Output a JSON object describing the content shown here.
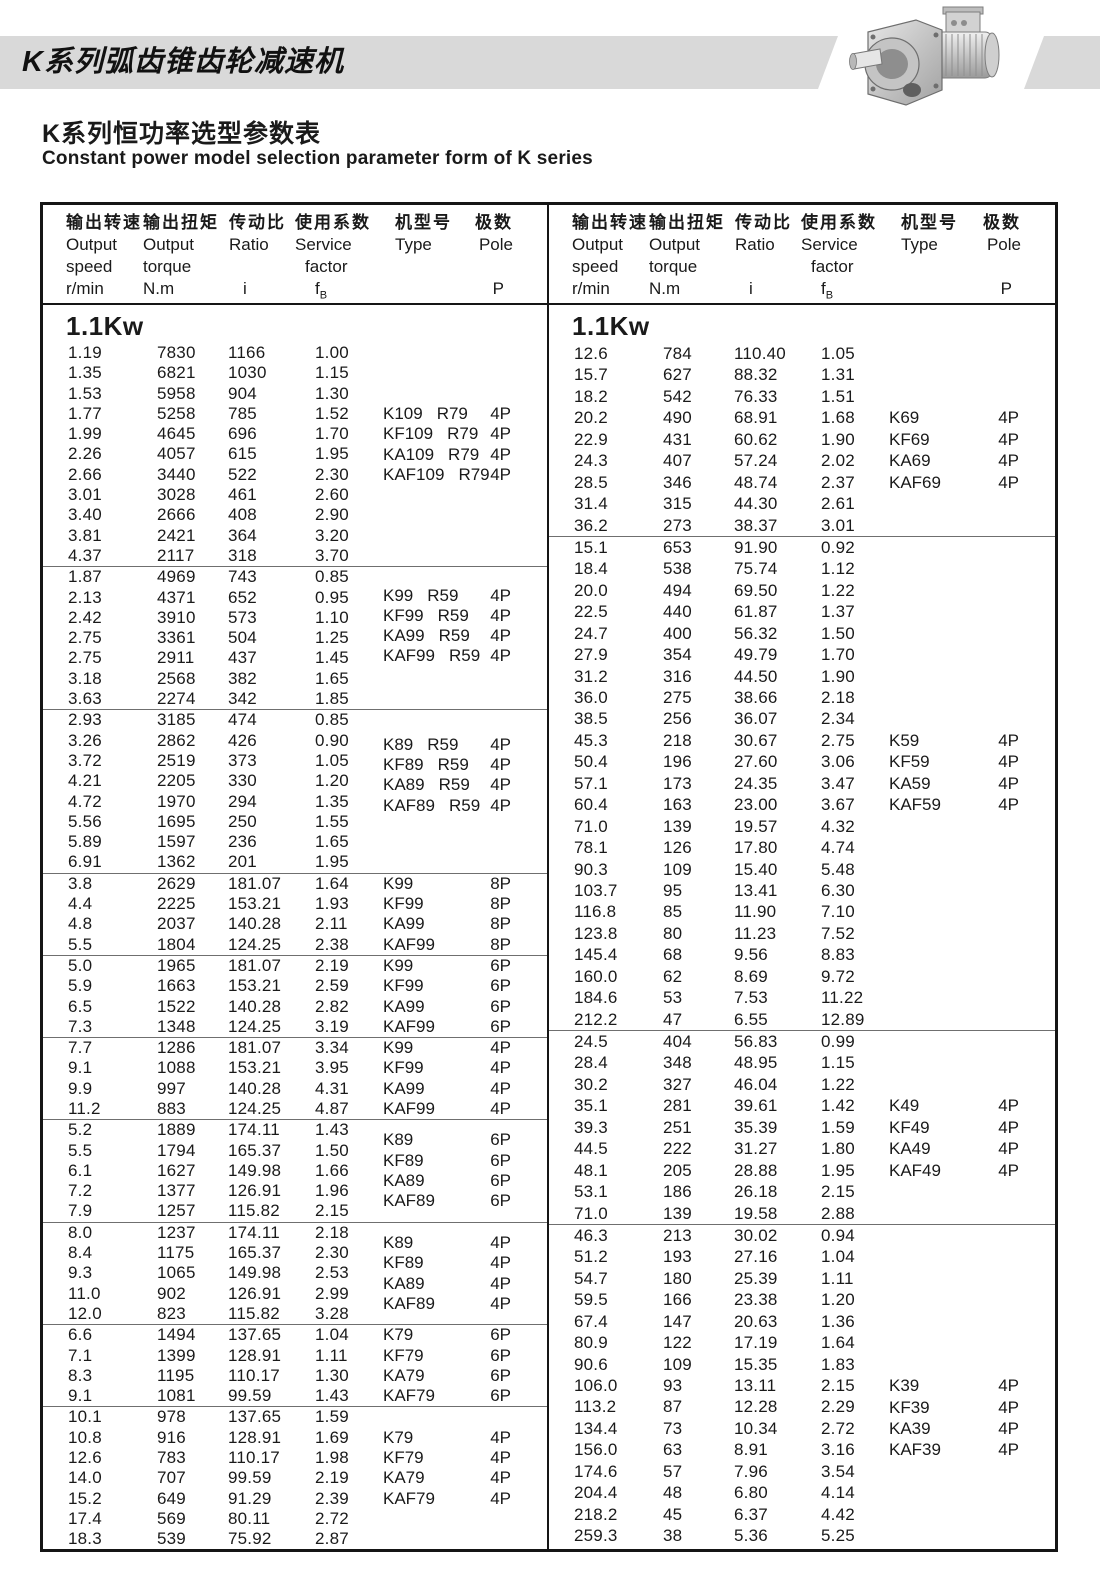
{
  "banner": {
    "title": "K系列弧齿锥齿轮减速机"
  },
  "page": {
    "title_zh": "K系列恒功率选型参数表",
    "title_en": "Constant power model selection parameter form of K series"
  },
  "power_label": "1.1Kw",
  "header_cols": [
    {
      "zh": "输出转速",
      "lines": [
        "Output",
        "speed",
        "r/min"
      ]
    },
    {
      "zh": "输出扭矩",
      "lines": [
        "Output",
        "torque",
        "N.m"
      ]
    },
    {
      "zh": "传动比",
      "lines": [
        "Ratio",
        "",
        "i"
      ]
    },
    {
      "zh": "使用系数",
      "lines": [
        "Service",
        "factor",
        "f_B"
      ]
    },
    {
      "zh": "机型号",
      "lines": [
        "Type"
      ]
    },
    {
      "zh": "极数",
      "lines": [
        "Pole",
        "",
        "P"
      ]
    }
  ],
  "left_blocks": [
    {
      "rows": [
        [
          "1.19",
          "7830",
          "1166",
          "1.00"
        ],
        [
          "1.35",
          "6821",
          "1030",
          "1.15"
        ],
        [
          "1.53",
          "5958",
          "904",
          "1.30"
        ],
        [
          "1.77",
          "5258",
          "785",
          "1.52"
        ],
        [
          "1.99",
          "4645",
          "696",
          "1.70"
        ],
        [
          "2.26",
          "4057",
          "615",
          "1.95"
        ],
        [
          "2.66",
          "3440",
          "522",
          "2.30"
        ],
        [
          "3.01",
          "3028",
          "461",
          "2.60"
        ],
        [
          "3.40",
          "2666",
          "408",
          "2.90"
        ],
        [
          "3.81",
          "2421",
          "364",
          "3.20"
        ],
        [
          "4.37",
          "2117",
          "318",
          "3.70"
        ]
      ],
      "types": {
        "names": [
          "K109",
          "KF109",
          "KA109",
          "KAF109"
        ],
        "suffix": "R79",
        "pole": "4P",
        "start": 3
      }
    },
    {
      "rows": [
        [
          "1.87",
          "4969",
          "743",
          "0.85"
        ],
        [
          "2.13",
          "4371",
          "652",
          "0.95"
        ],
        [
          "2.42",
          "3910",
          "573",
          "1.10"
        ],
        [
          "2.75",
          "3361",
          "504",
          "1.25"
        ],
        [
          "2.75",
          "2911",
          "437",
          "1.45"
        ],
        [
          "3.18",
          "2568",
          "382",
          "1.65"
        ],
        [
          "3.63",
          "2274",
          "342",
          "1.85"
        ]
      ],
      "types": {
        "names": [
          "K99",
          "KF99",
          "KA99",
          "KAF99"
        ],
        "suffix": "R59",
        "pole": "4P",
        "start": 0.9
      }
    },
    {
      "rows": [
        [
          "2.93",
          "3185",
          "474",
          "0.85"
        ],
        [
          "3.26",
          "2862",
          "426",
          "0.90"
        ],
        [
          "3.72",
          "2519",
          "373",
          "1.05"
        ],
        [
          "4.21",
          "2205",
          "330",
          "1.20"
        ],
        [
          "4.72",
          "1970",
          "294",
          "1.35"
        ],
        [
          "5.56",
          "1695",
          "250",
          "1.55"
        ],
        [
          "5.89",
          "1597",
          "236",
          "1.65"
        ],
        [
          "6.91",
          "1362",
          "201",
          "1.95"
        ]
      ],
      "types": {
        "names": [
          "K89",
          "KF89",
          "KA89",
          "KAF89"
        ],
        "suffix": "R59",
        "pole": "4P",
        "start": 1.2
      }
    },
    {
      "rows": [
        [
          "3.8",
          "2629",
          "181.07",
          "1.64"
        ],
        [
          "4.4",
          "2225",
          "153.21",
          "1.93"
        ],
        [
          "4.8",
          "2037",
          "140.28",
          "2.11"
        ],
        [
          "5.5",
          "1804",
          "124.25",
          "2.38"
        ]
      ],
      "types": {
        "names": [
          "K99",
          "KF99",
          "KA99",
          "KAF99"
        ],
        "suffix": "",
        "pole": "8P",
        "start": 0
      }
    },
    {
      "rows": [
        [
          "5.0",
          "1965",
          "181.07",
          "2.19"
        ],
        [
          "5.9",
          "1663",
          "153.21",
          "2.59"
        ],
        [
          "6.5",
          "1522",
          "140.28",
          "2.82"
        ],
        [
          "7.3",
          "1348",
          "124.25",
          "3.19"
        ]
      ],
      "types": {
        "names": [
          "K99",
          "KF99",
          "KA99",
          "KAF99"
        ],
        "suffix": "",
        "pole": "6P",
        "start": 0
      }
    },
    {
      "rows": [
        [
          "7.7",
          "1286",
          "181.07",
          "3.34"
        ],
        [
          "9.1",
          "1088",
          "153.21",
          "3.95"
        ],
        [
          "9.9",
          "997",
          "140.28",
          "4.31"
        ],
        [
          "11.2",
          "883",
          "124.25",
          "4.87"
        ]
      ],
      "types": {
        "names": [
          "K99",
          "KF99",
          "KA99",
          "KAF99"
        ],
        "suffix": "",
        "pole": "4P",
        "start": 0
      }
    },
    {
      "rows": [
        [
          "5.2",
          "1889",
          "174.11",
          "1.43"
        ],
        [
          "5.5",
          "1794",
          "165.37",
          "1.50"
        ],
        [
          "6.1",
          "1627",
          "149.98",
          "1.66"
        ],
        [
          "7.2",
          "1377",
          "126.91",
          "1.96"
        ],
        [
          "7.9",
          "1257",
          "115.82",
          "2.15"
        ]
      ],
      "types": {
        "names": [
          "K89",
          "KF89",
          "KA89",
          "KAF89"
        ],
        "suffix": "",
        "pole": "6P",
        "start": 0.5
      }
    },
    {
      "rows": [
        [
          "8.0",
          "1237",
          "174.11",
          "2.18"
        ],
        [
          "8.4",
          "1175",
          "165.37",
          "2.30"
        ],
        [
          "9.3",
          "1065",
          "149.98",
          "2.53"
        ],
        [
          "11.0",
          "902",
          "126.91",
          "2.99"
        ],
        [
          "12.0",
          "823",
          "115.82",
          "3.28"
        ]
      ],
      "types": {
        "names": [
          "K89",
          "KF89",
          "KA89",
          "KAF89"
        ],
        "suffix": "",
        "pole": "4P",
        "start": 0.5
      }
    },
    {
      "rows": [
        [
          "6.6",
          "1494",
          "137.65",
          "1.04"
        ],
        [
          "7.1",
          "1399",
          "128.91",
          "1.11"
        ],
        [
          "8.3",
          "1195",
          "110.17",
          "1.30"
        ],
        [
          "9.1",
          "1081",
          "99.59",
          "1.43"
        ]
      ],
      "types": {
        "names": [
          "K79",
          "KF79",
          "KA79",
          "KAF79"
        ],
        "suffix": "",
        "pole": "6P",
        "start": 0
      }
    },
    {
      "rows": [
        [
          "10.1",
          "978",
          "137.65",
          "1.59"
        ],
        [
          "10.8",
          "916",
          "128.91",
          "1.69"
        ],
        [
          "12.6",
          "783",
          "110.17",
          "1.98"
        ],
        [
          "14.0",
          "707",
          "99.59",
          "2.19"
        ],
        [
          "15.2",
          "649",
          "91.29",
          "2.39"
        ],
        [
          "17.4",
          "569",
          "80.11",
          "2.72"
        ],
        [
          "18.3",
          "539",
          "75.92",
          "2.87"
        ]
      ],
      "types": {
        "names": [
          "K79",
          "KF79",
          "KA79",
          "KAF79"
        ],
        "suffix": "",
        "pole": "4P",
        "start": 1
      }
    }
  ],
  "right_blocks": [
    {
      "rows": [
        [
          "12.6",
          "784",
          "110.40",
          "1.05"
        ],
        [
          "15.7",
          "627",
          "88.32",
          "1.31"
        ],
        [
          "18.2",
          "542",
          "76.33",
          "1.51"
        ],
        [
          "20.2",
          "490",
          "68.91",
          "1.68"
        ],
        [
          "22.9",
          "431",
          "60.62",
          "1.90"
        ],
        [
          "24.3",
          "407",
          "57.24",
          "2.02"
        ],
        [
          "28.5",
          "346",
          "48.74",
          "2.37"
        ],
        [
          "31.4",
          "315",
          "44.30",
          "2.61"
        ],
        [
          "36.2",
          "273",
          "38.37",
          "3.01"
        ]
      ],
      "types": {
        "names": [
          "K69",
          "KF69",
          "KA69",
          "KAF69"
        ],
        "suffix": "",
        "pole": "4P",
        "start": 3
      }
    },
    {
      "rows": [
        [
          "15.1",
          "653",
          "91.90",
          "0.92"
        ],
        [
          "18.4",
          "538",
          "75.74",
          "1.12"
        ],
        [
          "20.0",
          "494",
          "69.50",
          "1.22"
        ],
        [
          "22.5",
          "440",
          "61.87",
          "1.37"
        ],
        [
          "24.7",
          "400",
          "56.32",
          "1.50"
        ],
        [
          "27.9",
          "354",
          "49.79",
          "1.70"
        ],
        [
          "31.2",
          "316",
          "44.50",
          "1.90"
        ],
        [
          "36.0",
          "275",
          "38.66",
          "2.18"
        ],
        [
          "38.5",
          "256",
          "36.07",
          "2.34"
        ],
        [
          "45.3",
          "218",
          "30.67",
          "2.75"
        ],
        [
          "50.4",
          "196",
          "27.60",
          "3.06"
        ],
        [
          "57.1",
          "173",
          "24.35",
          "3.47"
        ],
        [
          "60.4",
          "163",
          "23.00",
          "3.67"
        ],
        [
          "71.0",
          "139",
          "19.57",
          "4.32"
        ],
        [
          "78.1",
          "126",
          "17.80",
          "4.74"
        ],
        [
          "90.3",
          "109",
          "15.40",
          "5.48"
        ],
        [
          "103.7",
          "95",
          "13.41",
          "6.30"
        ],
        [
          "116.8",
          "85",
          "11.90",
          "7.10"
        ],
        [
          "123.8",
          "80",
          "11.23",
          "7.52"
        ],
        [
          "145.4",
          "68",
          "9.56",
          "8.83"
        ],
        [
          "160.0",
          "62",
          "8.69",
          "9.72"
        ],
        [
          "184.6",
          "53",
          "7.53",
          "11.22"
        ],
        [
          "212.2",
          "47",
          "6.55",
          "12.89"
        ]
      ],
      "types": {
        "names": [
          "K59",
          "KF59",
          "KA59",
          "KAF59"
        ],
        "suffix": "",
        "pole": "4P",
        "start": 9
      }
    },
    {
      "rows": [
        [
          "24.5",
          "404",
          "56.83",
          "0.99"
        ],
        [
          "28.4",
          "348",
          "48.95",
          "1.15"
        ],
        [
          "30.2",
          "327",
          "46.04",
          "1.22"
        ],
        [
          "35.1",
          "281",
          "39.61",
          "1.42"
        ],
        [
          "39.3",
          "251",
          "35.39",
          "1.59"
        ],
        [
          "44.5",
          "222",
          "31.27",
          "1.80"
        ],
        [
          "48.1",
          "205",
          "28.88",
          "1.95"
        ],
        [
          "53.1",
          "186",
          "26.18",
          "2.15"
        ],
        [
          "71.0",
          "139",
          "19.58",
          "2.88"
        ]
      ],
      "types": {
        "names": [
          "K49",
          "KF49",
          "KA49",
          "KAF49"
        ],
        "suffix": "",
        "pole": "4P",
        "start": 3
      }
    },
    {
      "rows": [
        [
          "46.3",
          "213",
          "30.02",
          "0.94"
        ],
        [
          "51.2",
          "193",
          "27.16",
          "1.04"
        ],
        [
          "54.7",
          "180",
          "25.39",
          "1.11"
        ],
        [
          "59.5",
          "166",
          "23.38",
          "1.20"
        ],
        [
          "67.4",
          "147",
          "20.63",
          "1.36"
        ],
        [
          "80.9",
          "122",
          "17.19",
          "1.64"
        ],
        [
          "90.6",
          "109",
          "15.35",
          "1.83"
        ],
        [
          "106.0",
          "93",
          "13.11",
          "2.15"
        ],
        [
          "113.2",
          "87",
          "12.28",
          "2.29"
        ],
        [
          "134.4",
          "73",
          "10.34",
          "2.72"
        ],
        [
          "156.0",
          "63",
          "8.91",
          "3.16"
        ],
        [
          "174.6",
          "57",
          "7.96",
          "3.54"
        ],
        [
          "204.4",
          "48",
          "6.80",
          "4.14"
        ],
        [
          "218.2",
          "45",
          "6.37",
          "4.42"
        ],
        [
          "259.3",
          "38",
          "5.36",
          "5.25"
        ]
      ],
      "types": {
        "names": [
          "K39",
          "KF39",
          "KA39",
          "KAF39"
        ],
        "suffix": "",
        "pole": "4P",
        "start": 7
      }
    }
  ]
}
